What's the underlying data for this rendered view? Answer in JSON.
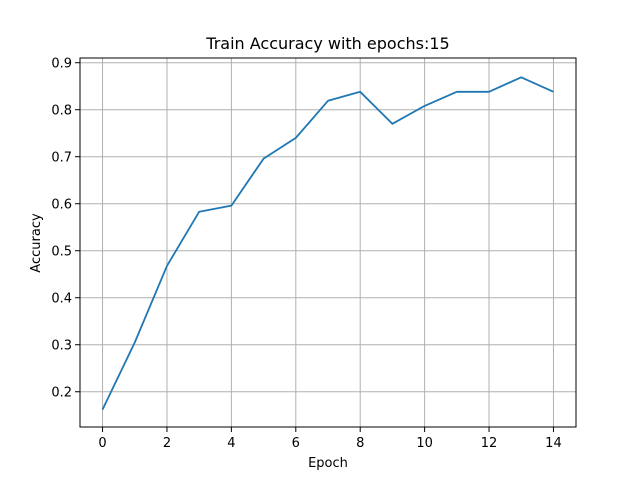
{
  "chart_data": {
    "type": "line",
    "title": "Train Accuracy with epochs:15",
    "xlabel": "Epoch",
    "ylabel": "Accuracy",
    "xlim": [
      -0.7,
      14.7
    ],
    "ylim": [
      0.125,
      0.91
    ],
    "grid": true,
    "xticks": [
      0,
      2,
      4,
      6,
      8,
      10,
      12,
      14
    ],
    "xtick_labels": [
      "0",
      "2",
      "4",
      "6",
      "8",
      "10",
      "12",
      "14"
    ],
    "yticks": [
      0.2,
      0.3,
      0.4,
      0.5,
      0.6,
      0.7,
      0.8,
      0.9
    ],
    "ytick_labels": [
      "0.2",
      "0.3",
      "0.4",
      "0.5",
      "0.6",
      "0.7",
      "0.8",
      "0.9"
    ],
    "series": [
      {
        "color": "#1f77b4",
        "x": [
          0,
          1,
          2,
          3,
          4,
          5,
          6,
          7,
          8,
          9,
          10,
          11,
          12,
          13,
          14
        ],
        "values": [
          0.162,
          0.305,
          0.468,
          0.583,
          0.596,
          0.696,
          0.74,
          0.819,
          0.838,
          0.77,
          0.808,
          0.838,
          0.838,
          0.869,
          0.838
        ]
      }
    ]
  }
}
